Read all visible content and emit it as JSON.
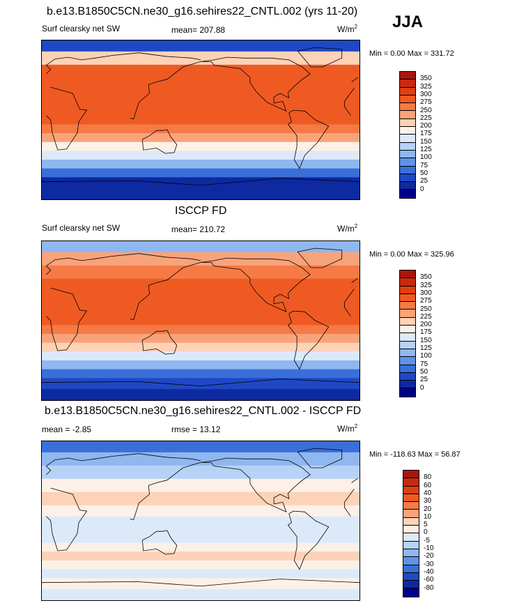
{
  "season": "JJA",
  "panels": [
    {
      "title": "b.e13.B1850C5CN.ne30_g16.sehires22_CNTL.002 (yrs 11-20)",
      "variable": "Surf clearsky net SW",
      "stat": "mean= 207.88",
      "units": "W/m",
      "units_sup": "2",
      "minmax": "Min =   0.00 Max = 331.72",
      "colorbar": {
        "labels": [
          "350",
          "325",
          "300",
          "275",
          "250",
          "225",
          "200",
          "175",
          "150",
          "125",
          "100",
          "75",
          "50",
          "25",
          "0"
        ],
        "colors": [
          "#a8160e",
          "#c72a10",
          "#e03f12",
          "#ef5a23",
          "#f57a45",
          "#f9a37a",
          "#fdd2b7",
          "#fdf0e6",
          "#dce9fb",
          "#b7d2f6",
          "#8fb7f0",
          "#5f93e6",
          "#3a6ed9",
          "#1f48c4",
          "#0d2aa0",
          "#00008a"
        ]
      },
      "field": {
        "bands": [
          {
            "lat": 85,
            "v": 40
          },
          {
            "lat": 70,
            "v": 210
          },
          {
            "lat": 55,
            "v": 275
          },
          {
            "lat": 40,
            "v": 290
          },
          {
            "lat": 25,
            "v": 295
          },
          {
            "lat": 10,
            "v": 290
          },
          {
            "lat": 0,
            "v": 280
          },
          {
            "lat": -10,
            "v": 265
          },
          {
            "lat": -20,
            "v": 235
          },
          {
            "lat": -30,
            "v": 195
          },
          {
            "lat": -40,
            "v": 150
          },
          {
            "lat": -50,
            "v": 100
          },
          {
            "lat": -60,
            "v": 55
          },
          {
            "lat": -70,
            "v": 20
          },
          {
            "lat": -85,
            "v": 5
          }
        ]
      }
    },
    {
      "title": "ISCCP FD",
      "variable": "Surf clearsky net SW",
      "stat": "mean= 210.72",
      "units": "W/m",
      "units_sup": "2",
      "minmax": "Min =   0.00 Max = 325.96",
      "colorbar": {
        "labels": [
          "350",
          "325",
          "300",
          "275",
          "250",
          "225",
          "200",
          "175",
          "150",
          "125",
          "100",
          "75",
          "50",
          "25",
          "0"
        ],
        "colors": [
          "#a8160e",
          "#c72a10",
          "#e03f12",
          "#ef5a23",
          "#f57a45",
          "#f9a37a",
          "#fdd2b7",
          "#fdf0e6",
          "#dce9fb",
          "#b7d2f6",
          "#8fb7f0",
          "#5f93e6",
          "#3a6ed9",
          "#1f48c4",
          "#0d2aa0",
          "#00008a"
        ]
      },
      "field": {
        "bands": [
          {
            "lat": 85,
            "v": 120
          },
          {
            "lat": 70,
            "v": 230
          },
          {
            "lat": 55,
            "v": 270
          },
          {
            "lat": 40,
            "v": 285
          },
          {
            "lat": 25,
            "v": 290
          },
          {
            "lat": 10,
            "v": 285
          },
          {
            "lat": 0,
            "v": 278
          },
          {
            "lat": -10,
            "v": 268
          },
          {
            "lat": -20,
            "v": 240
          },
          {
            "lat": -30,
            "v": 200
          },
          {
            "lat": -40,
            "v": 155
          },
          {
            "lat": -50,
            "v": 105
          },
          {
            "lat": -60,
            "v": 60
          },
          {
            "lat": -70,
            "v": 25
          },
          {
            "lat": -85,
            "v": 5
          }
        ]
      }
    },
    {
      "title": "b.e13.B1850C5CN.ne30_g16.sehires22_CNTL.002 - ISCCP FD",
      "variable": "mean =  -2.85",
      "stat": "rmse =  13.12",
      "units": "W/m",
      "units_sup": "2",
      "minmax": "Min = -118.63 Max =  56.87",
      "colorbar": {
        "labels": [
          "80",
          "60",
          "40",
          "30",
          "20",
          "10",
          "5",
          "0",
          "-5",
          "-10",
          "-20",
          "-30",
          "-40",
          "-60",
          "-80"
        ],
        "colors": [
          "#a8160e",
          "#c72a10",
          "#e03f12",
          "#ef5a23",
          "#f57a45",
          "#f9a37a",
          "#fdd2b7",
          "#fdf0e6",
          "#dce9fb",
          "#b7d2f6",
          "#8fb7f0",
          "#5f93e6",
          "#3a6ed9",
          "#1f48c4",
          "#0d2aa0",
          "#00008a"
        ]
      },
      "field": {
        "bands": [
          {
            "lat": 85,
            "v": -35
          },
          {
            "lat": 70,
            "v": -15
          },
          {
            "lat": 55,
            "v": -8
          },
          {
            "lat": 40,
            "v": 2
          },
          {
            "lat": 25,
            "v": 6
          },
          {
            "lat": 10,
            "v": 4
          },
          {
            "lat": 0,
            "v": -3
          },
          {
            "lat": -10,
            "v": -2
          },
          {
            "lat": -20,
            "v": -1
          },
          {
            "lat": -30,
            "v": 4
          },
          {
            "lat": -40,
            "v": 6
          },
          {
            "lat": -50,
            "v": 3
          },
          {
            "lat": -60,
            "v": -2
          },
          {
            "lat": -70,
            "v": 2
          },
          {
            "lat": -85,
            "v": -1
          }
        ]
      }
    }
  ]
}
